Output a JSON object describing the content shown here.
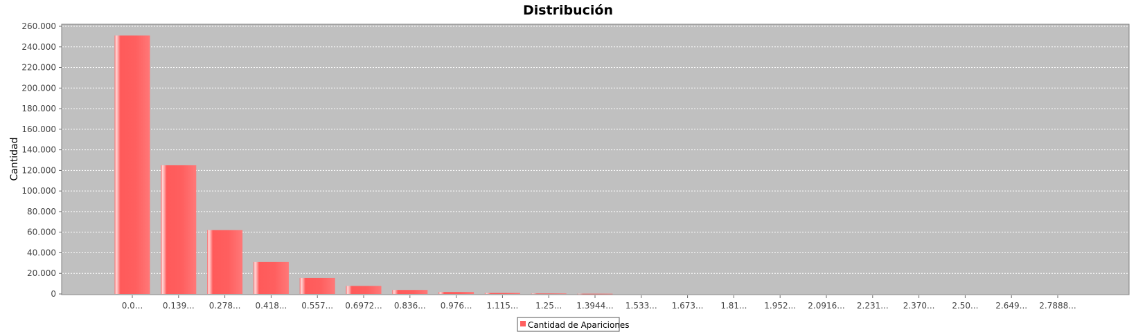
{
  "chart_data": {
    "type": "bar",
    "title": "Distribución",
    "xlabel": "",
    "ylabel": "Cantidad",
    "ylim": [
      0,
      260000
    ],
    "ytick_values": [
      0,
      20000,
      40000,
      60000,
      80000,
      100000,
      120000,
      140000,
      160000,
      180000,
      200000,
      220000,
      240000,
      260000
    ],
    "ytick_labels": [
      "0",
      "20.000",
      "40.000",
      "60.000",
      "80.000",
      "100.000",
      "120.000",
      "140.000",
      "160.000",
      "180.000",
      "200.000",
      "220.000",
      "240.000",
      "260.000"
    ],
    "categories": [
      "0.0...",
      "0.139...",
      "0.278...",
      "0.418...",
      "0.557...",
      "0.6972...",
      "0.836...",
      "0.976...",
      "1.115...",
      "1.25...",
      "1.3944...",
      "1.533...",
      "1.673...",
      "1.81...",
      "1.952...",
      "2.0916...",
      "2.231...",
      "2.370...",
      "2.50...",
      "2.649...",
      "2.7888..."
    ],
    "series": [
      {
        "name": "Cantidad de Apariciones",
        "values": [
          251000,
          125000,
          62000,
          31000,
          15500,
          7800,
          3900,
          1900,
          950,
          480,
          240,
          120,
          60,
          30,
          15,
          8,
          4,
          2,
          1,
          0,
          0
        ]
      }
    ],
    "grid": true,
    "legend_position": "bottom-center",
    "colors": {
      "plot_background": "#c0c0c0",
      "bar": "#ff5f5f",
      "bar_highlight": "#ffd0d0",
      "grid": "#ffffff"
    }
  }
}
